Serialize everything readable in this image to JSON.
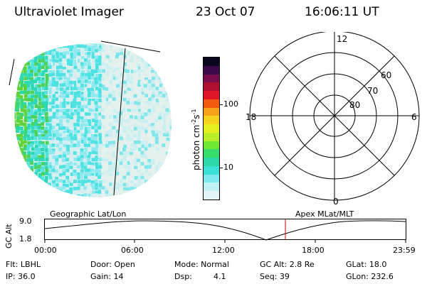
{
  "header": {
    "instrument": "Ultraviolet Imager",
    "date": "23 Oct 07",
    "time": "16:06:11 UT"
  },
  "colorbar": {
    "label_main": "photon cm",
    "label_exp1": "-2",
    "label_mid": "s",
    "label_exp2": "-1",
    "ticks": [
      "100",
      "10"
    ],
    "colors": [
      "#0b0520",
      "#3a0a4a",
      "#7a0d4e",
      "#b01030",
      "#e0152a",
      "#f25a10",
      "#f7a01a",
      "#f5d21e",
      "#e6f01c",
      "#b8ee2a",
      "#6ee830",
      "#36dd6c",
      "#2bd9a8",
      "#3ae0d8",
      "#7eeaf0",
      "#bff2f5",
      "#e4f5f5"
    ]
  },
  "polar": {
    "labels": {
      "top": "12",
      "bottom": "0",
      "left": "18",
      "right": "6"
    },
    "lat_labels": [
      "60",
      "70",
      "80"
    ]
  },
  "timeline": {
    "left_title": "Geographic Lat/Lon",
    "right_title": "Apex MLat/MLT",
    "axis_title": "GC Alt",
    "y_ticks": [
      "9.0",
      "1.8"
    ],
    "x_ticks": [
      "00:00",
      "06:00",
      "12:00",
      "18:00",
      "23:59"
    ],
    "cursor_color": "#cc0000"
  },
  "status": {
    "flt": "Flt: LBHL",
    "ip": "IP: 36.0",
    "door": "Door: Open",
    "gain": "Gain: 14",
    "mode": "Mode: Normal",
    "dsp_label": "Dsp:",
    "dsp_value": "4.1",
    "gc_alt": "GC Alt: 2.8 Re",
    "seq": "Seq: 39",
    "glat": "GLat: 18.0",
    "glon": "GLon: 232.6"
  }
}
